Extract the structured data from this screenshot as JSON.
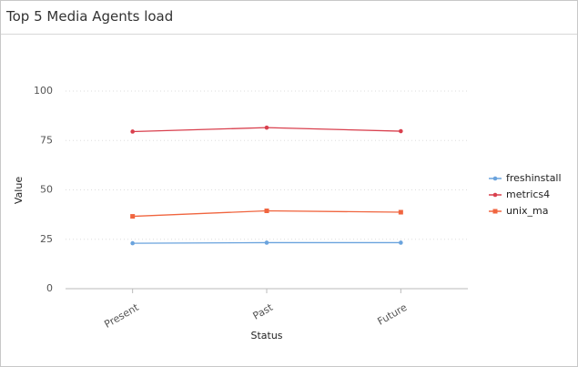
{
  "chart_data": {
    "type": "line",
    "title": "Top 5 Media Agents load",
    "x_label": "Status",
    "y_label": "Value",
    "categories": [
      "Present",
      "Past",
      "Future"
    ],
    "series": [
      {
        "name": "freshinstall",
        "color": "#6aa3dd",
        "symbol": "circle",
        "values": [
          23,
          23.3,
          23.3
        ]
      },
      {
        "name": "metrics4",
        "color": "#d9404e",
        "symbol": "circle",
        "values": [
          79.5,
          81.5,
          79.7
        ]
      },
      {
        "name": "unix_ma",
        "color": "#f0653f",
        "symbol": "square",
        "values": [
          36.6,
          39.4,
          38.7
        ]
      }
    ],
    "ylim": [
      0,
      100
    ],
    "yticks": [
      0,
      25,
      50,
      75,
      100
    ],
    "grid": true,
    "legend": "right"
  }
}
